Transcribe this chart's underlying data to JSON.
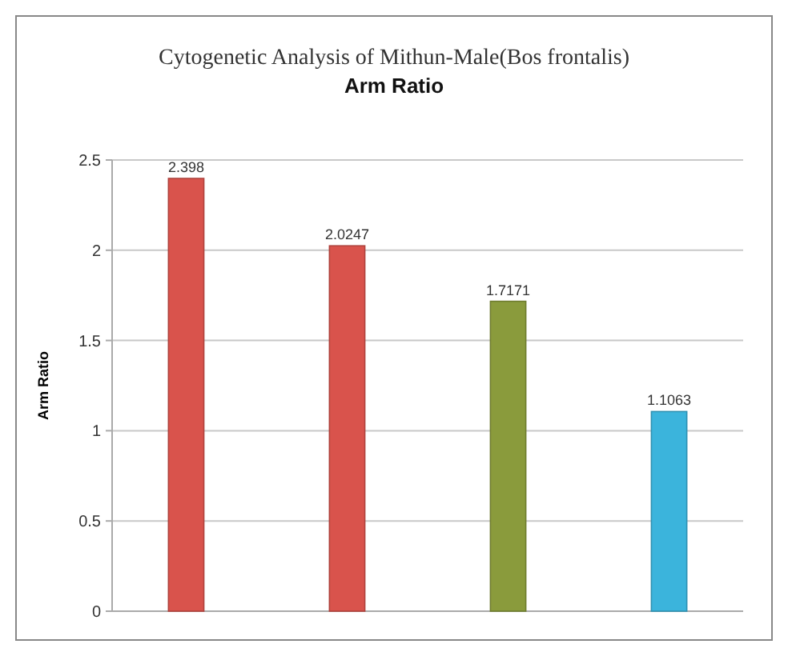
{
  "chart_data": {
    "type": "bar",
    "title": "Cytogenetic Analysis of Mithun-Male(Bos frontalis)",
    "subtitle": "Arm Ratio",
    "ylabel": "Arm Ratio",
    "categories": [
      null,
      null,
      null,
      null
    ],
    "values": [
      2.398,
      2.0247,
      1.7171,
      1.1063
    ],
    "colors": [
      "#d9534c",
      "#d9534c",
      "#8a9b3c",
      "#3bb4dc"
    ],
    "ylim": [
      0,
      2.5
    ],
    "yticks": [
      0,
      0.5,
      1,
      1.5,
      2,
      2.5
    ],
    "grid": "y",
    "data_labels": true
  }
}
